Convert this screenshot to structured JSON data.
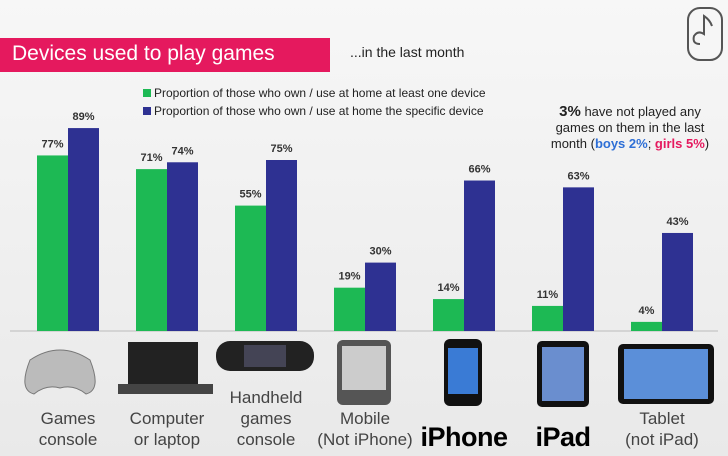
{
  "chart_data": {
    "type": "bar",
    "title": "Devices used to play games",
    "subtitle": "...in the last month",
    "categories": [
      "Games\nconsole",
      "Computer\nor laptop",
      "Handheld\ngames\nconsole",
      "Mobile\n(Not iPhone)",
      "iPhone",
      "iPad",
      "Tablet\n(not iPad)"
    ],
    "series": [
      {
        "name": "Proportion of those who own / use at home at least one device",
        "color": "#1db954",
        "values": [
          77,
          71,
          55,
          19,
          14,
          11,
          4
        ],
        "value_labels": [
          "77%",
          "71%",
          "55%",
          "19%",
          "14%",
          "11%",
          "4%"
        ]
      },
      {
        "name": "Proportion of those who own / use at home the specific device",
        "color": "#2e3192",
        "values": [
          89,
          74,
          75,
          30,
          66,
          63,
          43
        ],
        "value_labels": [
          "89%",
          "74%",
          "75%",
          "30%",
          "66%",
          "63%",
          "43%"
        ]
      }
    ],
    "annotation": [
      "3%",
      " have not played any games on them in the last month (",
      "boys 2%",
      "; ",
      "girls 5%",
      ")"
    ]
  }
}
